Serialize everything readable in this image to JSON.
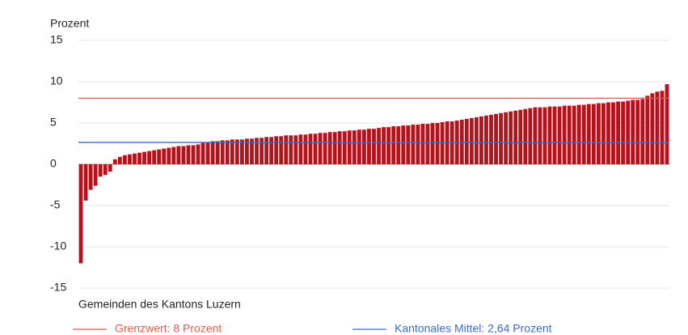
{
  "chart_data": {
    "type": "bar",
    "y_label": "Prozent",
    "x_label": "Gemeinden des Kantons Luzern",
    "color": "#b5121b",
    "values": [
      -12,
      -4.4,
      -3.1,
      -2.6,
      -1.5,
      -1.3,
      -0.9,
      0.6,
      0.9,
      1.1,
      1.2,
      1.3,
      1.4,
      1.5,
      1.6,
      1.7,
      1.8,
      1.9,
      2.0,
      2.1,
      2.2,
      2.2,
      2.3,
      2.3,
      2.4,
      2.7,
      2.7,
      2.8,
      2.8,
      2.9,
      2.9,
      3.0,
      3.0,
      3.0,
      3.1,
      3.1,
      3.2,
      3.2,
      3.3,
      3.3,
      3.4,
      3.4,
      3.5,
      3.5,
      3.5,
      3.6,
      3.6,
      3.7,
      3.7,
      3.8,
      3.8,
      3.9,
      3.9,
      4.0,
      4.0,
      4.1,
      4.1,
      4.2,
      4.2,
      4.3,
      4.3,
      4.4,
      4.5,
      4.5,
      4.6,
      4.6,
      4.7,
      4.7,
      4.8,
      4.8,
      4.9,
      4.9,
      5.0,
      5.0,
      5.1,
      5.2,
      5.2,
      5.3,
      5.4,
      5.5,
      5.6,
      5.7,
      5.8,
      5.9,
      6.0,
      6.1,
      6.2,
      6.3,
      6.4,
      6.5,
      6.6,
      6.7,
      6.8,
      6.9,
      6.9,
      6.9,
      7.0,
      7.0,
      7.0,
      7.1,
      7.1,
      7.1,
      7.2,
      7.2,
      7.3,
      7.3,
      7.4,
      7.4,
      7.5,
      7.5,
      7.6,
      7.6,
      7.7,
      7.8,
      7.8,
      7.9,
      8.3,
      8.6,
      8.8,
      8.9,
      9.7
    ],
    "ylim": [
      -15,
      15
    ],
    "yticks": [
      15,
      10,
      5,
      0,
      -5,
      -10,
      -15
    ],
    "grid": true,
    "reference_lines": [
      {
        "label": "Grenzwert: 8 Prozent",
        "value": 8,
        "color": "#e05a4a"
      },
      {
        "label": "Kantonales Mittel: 2,64 Prozent",
        "value": 2.64,
        "color": "#3a6bc4"
      }
    ]
  }
}
